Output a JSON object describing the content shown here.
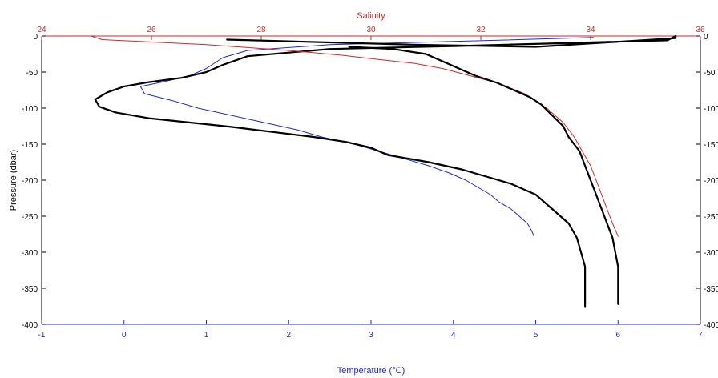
{
  "chart_data": {
    "type": "line",
    "title": "",
    "top_axis": {
      "label": "Salinity",
      "color": "#d62728",
      "range": [
        24,
        36
      ],
      "ticks": [
        "24",
        "26",
        "28",
        "30",
        "32",
        "34",
        "36"
      ]
    },
    "bottom_axis": {
      "label": "Temperature (°C)",
      "color": "#1f2ad6",
      "range": [
        -1,
        7
      ],
      "ticks": [
        "-1",
        "0",
        "1",
        "2",
        "3",
        "4",
        "5",
        "6",
        "7"
      ]
    },
    "left_axis": {
      "label": "Pressure (dbar)",
      "color": "#000000",
      "range": [
        -400,
        0
      ],
      "ticks": [
        "0",
        "-50",
        "-100",
        "-150",
        "-200",
        "-250",
        "-300",
        "-350",
        "-400"
      ]
    },
    "right_axis": {
      "color": "#000000",
      "range": [
        -400,
        0
      ],
      "ticks": [
        "0",
        "-50",
        "-100",
        "-150",
        "-200",
        "-250",
        "-300",
        "-350",
        "-400"
      ]
    },
    "grid": false,
    "series": [
      {
        "axis": "temperature",
        "color": "#1f2ad6",
        "width": 1,
        "points": [
          [
            5.7,
            -2
          ],
          [
            4.5,
            -6
          ],
          [
            2.5,
            -12
          ],
          [
            1.5,
            -20
          ],
          [
            1.2,
            -30
          ],
          [
            1.0,
            -45
          ],
          [
            0.8,
            -55
          ],
          [
            0.5,
            -63
          ],
          [
            0.2,
            -70
          ],
          [
            0.25,
            -80
          ],
          [
            0.6,
            -90
          ],
          [
            0.9,
            -100
          ],
          [
            1.3,
            -110
          ],
          [
            1.7,
            -120
          ],
          [
            2.1,
            -130
          ],
          [
            2.4,
            -140
          ],
          [
            2.8,
            -150
          ],
          [
            3.1,
            -160
          ],
          [
            3.4,
            -170
          ],
          [
            3.7,
            -180
          ],
          [
            3.95,
            -190
          ],
          [
            4.15,
            -200
          ],
          [
            4.3,
            -210
          ],
          [
            4.45,
            -220
          ],
          [
            4.55,
            -230
          ],
          [
            4.7,
            -240
          ],
          [
            4.8,
            -250
          ],
          [
            4.9,
            -260
          ],
          [
            4.95,
            -270
          ],
          [
            4.98,
            -278
          ]
        ]
      },
      {
        "axis": "temperature",
        "color": "#000000",
        "width": 2.2,
        "points": [
          [
            1.25,
            -5
          ],
          [
            3.5,
            -12
          ],
          [
            5.0,
            -15
          ],
          [
            6.0,
            -8
          ],
          [
            6.7,
            -3
          ],
          [
            6.7,
            0
          ],
          [
            6.6,
            -6
          ],
          [
            4.0,
            -14
          ],
          [
            2.5,
            -18
          ],
          [
            1.5,
            -28
          ],
          [
            1.2,
            -40
          ],
          [
            1.0,
            -50
          ],
          [
            0.7,
            -58
          ],
          [
            0.3,
            -64
          ],
          [
            0.0,
            -70
          ],
          [
            -0.2,
            -78
          ],
          [
            -0.35,
            -88
          ],
          [
            -0.3,
            -98
          ],
          [
            -0.1,
            -106
          ],
          [
            0.3,
            -114
          ],
          [
            0.8,
            -120
          ],
          [
            1.3,
            -126
          ],
          [
            1.8,
            -133
          ],
          [
            2.3,
            -140
          ],
          [
            2.7,
            -147
          ],
          [
            3.0,
            -155
          ],
          [
            3.2,
            -165
          ],
          [
            3.7,
            -175
          ],
          [
            4.1,
            -185
          ],
          [
            4.4,
            -195
          ],
          [
            4.7,
            -205
          ],
          [
            5.0,
            -220
          ],
          [
            5.2,
            -240
          ],
          [
            5.4,
            -260
          ],
          [
            5.5,
            -280
          ],
          [
            5.55,
            -300
          ],
          [
            5.6,
            -320
          ],
          [
            5.6,
            -350
          ],
          [
            5.6,
            -375
          ]
        ]
      },
      {
        "axis": "salinity",
        "color": "#d62728",
        "width": 1,
        "points": [
          [
            24.9,
            0
          ],
          [
            25.1,
            -5
          ],
          [
            27.0,
            -12
          ],
          [
            28.5,
            -20
          ],
          [
            29.5,
            -27
          ],
          [
            30.2,
            -33
          ],
          [
            30.8,
            -38
          ],
          [
            31.3,
            -45
          ],
          [
            31.8,
            -55
          ],
          [
            32.3,
            -65
          ],
          [
            32.8,
            -80
          ],
          [
            33.2,
            -100
          ],
          [
            33.5,
            -120
          ],
          [
            33.7,
            -140
          ],
          [
            33.85,
            -160
          ],
          [
            34.0,
            -180
          ],
          [
            34.1,
            -200
          ],
          [
            34.2,
            -220
          ],
          [
            34.3,
            -240
          ],
          [
            34.4,
            -260
          ],
          [
            34.5,
            -278
          ]
        ]
      },
      {
        "axis": "salinity",
        "color": "#000000",
        "width": 2.2,
        "points": [
          [
            29.6,
            -15
          ],
          [
            30.4,
            -18
          ],
          [
            31.0,
            -25
          ],
          [
            31.3,
            -35
          ],
          [
            31.6,
            -45
          ],
          [
            31.9,
            -55
          ],
          [
            32.3,
            -65
          ],
          [
            32.6,
            -75
          ],
          [
            32.9,
            -85
          ],
          [
            33.1,
            -95
          ],
          [
            33.3,
            -110
          ],
          [
            33.5,
            -125
          ],
          [
            33.6,
            -140
          ],
          [
            33.8,
            -160
          ],
          [
            33.9,
            -180
          ],
          [
            34.0,
            -200
          ],
          [
            34.1,
            -220
          ],
          [
            34.2,
            -240
          ],
          [
            34.3,
            -260
          ],
          [
            34.4,
            -280
          ],
          [
            34.45,
            -300
          ],
          [
            34.5,
            -320
          ],
          [
            34.5,
            -340
          ],
          [
            34.5,
            -360
          ],
          [
            34.5,
            -372
          ]
        ]
      }
    ]
  }
}
